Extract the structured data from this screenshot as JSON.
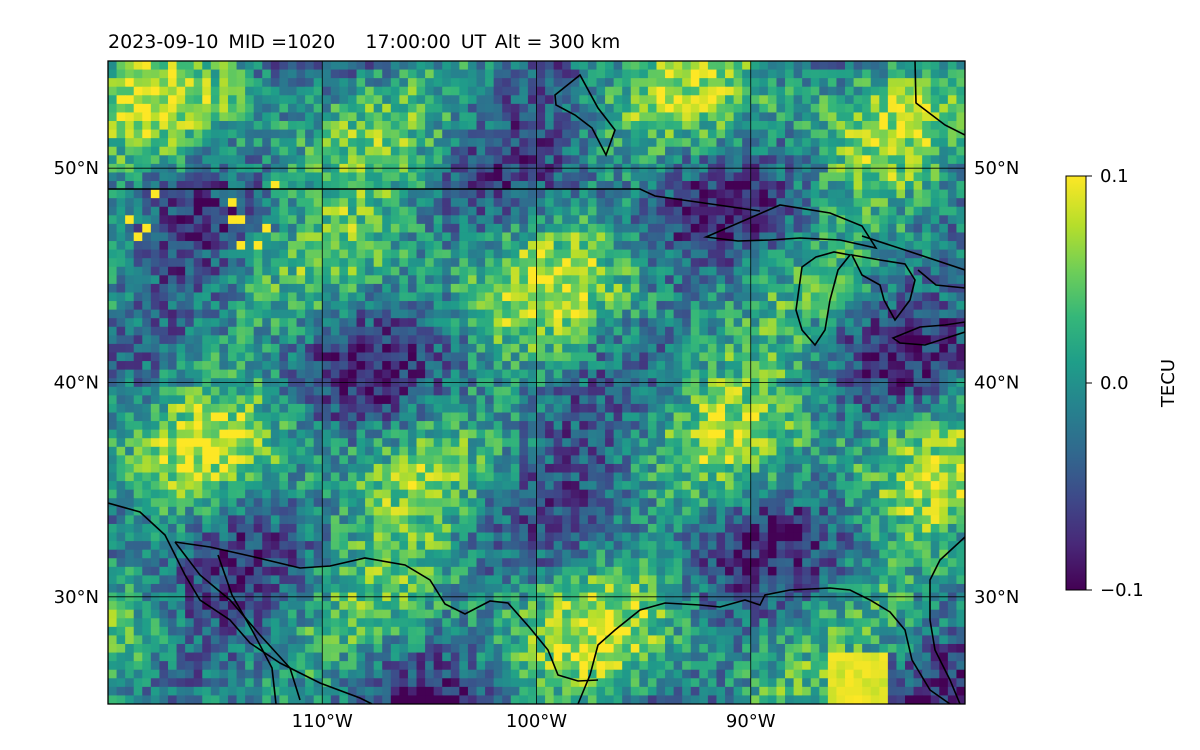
{
  "header": {
    "date": "2023-09-10",
    "mid": "MID =1020",
    "time": "17:00:00",
    "ut": "UT",
    "alt": "Alt = 300 km"
  },
  "chart_data": {
    "type": "heatmap",
    "title": "2023-09-10  MID =1020    17:00:00  UT  Alt = 300 km",
    "map_extent": {
      "lon": [
        -120,
        -80
      ],
      "lat": [
        25,
        55
      ]
    },
    "grid": true,
    "lat_ticks": [
      50,
      40,
      30
    ],
    "lat_tick_labels": [
      "50°N",
      "40°N",
      "30°N"
    ],
    "lon_ticks": [
      -110,
      -100,
      -90
    ],
    "lon_tick_labels": [
      "110°W",
      "100°W",
      "90°W"
    ],
    "colorbar": {
      "label": "TECU",
      "range": [
        -0.1,
        0.1
      ],
      "colormap": "viridis",
      "ticks": [
        0.1,
        0.0,
        -0.1
      ],
      "tick_labels": [
        "0.1",
        "0.0",
        "−0.1"
      ]
    },
    "notable_features": [
      {
        "region": "Gulf of Mexico east (~84-86°W, 25-27.5°N)",
        "value": 0.1
      },
      {
        "region": "Montana/Idaho scattered cells",
        "value": 0.1
      }
    ]
  },
  "colors": {
    "viridis": [
      "#440154",
      "#482878",
      "#3e4989",
      "#31688e",
      "#26828e",
      "#1f9e89",
      "#35b779",
      "#6ece58",
      "#b5de2b",
      "#fde725"
    ]
  }
}
